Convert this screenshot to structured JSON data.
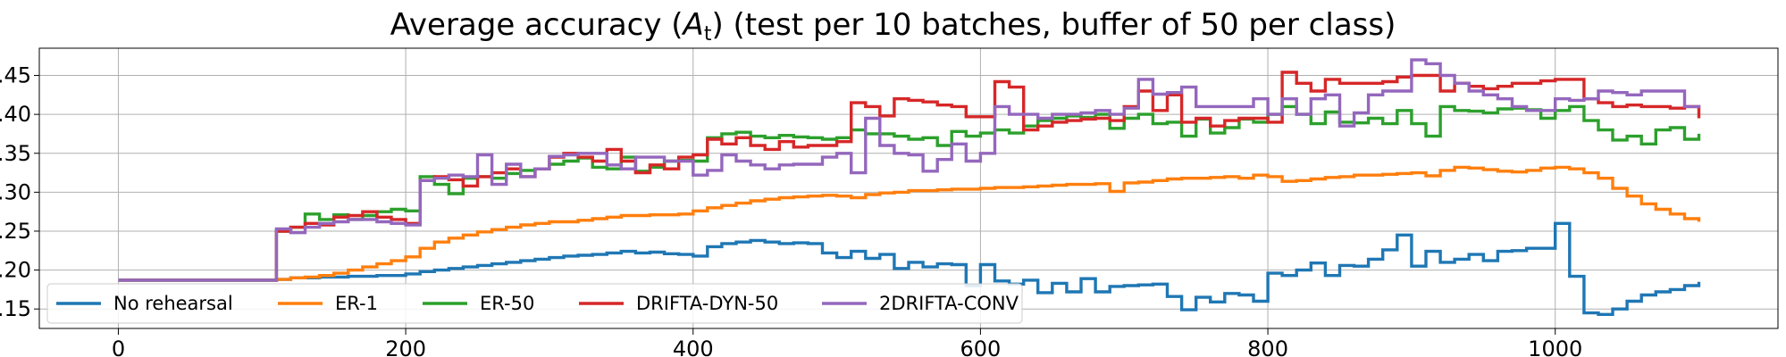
{
  "chart_data": {
    "type": "line",
    "title": {
      "pre": "Average accuracy (",
      "var": "A",
      "sub": "t",
      "post": ") (test per 10 batches, buffer of 50 per class)"
    },
    "xlabel": "",
    "ylabel": "",
    "xlim": [
      -55,
      1155
    ],
    "ylim": [
      0.125,
      0.485
    ],
    "x_ticks": [
      0,
      200,
      400,
      600,
      800,
      1000
    ],
    "x_tick_labels": [
      "0",
      "200",
      "400",
      "600",
      "800",
      "1000"
    ],
    "y_ticks": [
      0.15,
      0.2,
      0.25,
      0.3,
      0.35,
      0.4,
      0.45
    ],
    "y_tick_labels": [
      ".15",
      ".20",
      ".25",
      ".30",
      ".35",
      ".40",
      ".45"
    ],
    "grid": true,
    "legend_position": "lower-left",
    "series": [
      {
        "name": "No rehearsal",
        "color": "#1f77b4",
        "x": [
          0,
          100,
          110,
          120,
          130,
          140,
          150,
          160,
          170,
          180,
          190,
          200,
          210,
          220,
          230,
          240,
          250,
          260,
          270,
          280,
          290,
          300,
          310,
          320,
          330,
          340,
          350,
          360,
          370,
          380,
          390,
          400,
          410,
          420,
          430,
          440,
          450,
          460,
          470,
          480,
          490,
          500,
          510,
          520,
          530,
          540,
          550,
          560,
          570,
          580,
          590,
          600,
          610,
          620,
          630,
          640,
          650,
          660,
          670,
          680,
          690,
          700,
          710,
          720,
          730,
          740,
          750,
          760,
          770,
          780,
          790,
          800,
          810,
          820,
          830,
          840,
          850,
          860,
          870,
          880,
          890,
          900,
          910,
          920,
          930,
          940,
          950,
          960,
          970,
          980,
          990,
          1000,
          1010,
          1020,
          1030,
          1040,
          1050,
          1060,
          1070,
          1080,
          1090,
          1100
        ],
        "y": [
          0.187,
          0.187,
          0.188,
          0.19,
          0.19,
          0.191,
          0.191,
          0.192,
          0.192,
          0.193,
          0.193,
          0.195,
          0.198,
          0.2,
          0.202,
          0.204,
          0.206,
          0.208,
          0.21,
          0.212,
          0.214,
          0.216,
          0.218,
          0.219,
          0.22,
          0.222,
          0.224,
          0.222,
          0.223,
          0.221,
          0.22,
          0.218,
          0.23,
          0.234,
          0.236,
          0.238,
          0.236,
          0.234,
          0.235,
          0.234,
          0.222,
          0.216,
          0.224,
          0.215,
          0.22,
          0.202,
          0.21,
          0.204,
          0.208,
          0.207,
          0.18,
          0.207,
          0.186,
          0.182,
          0.187,
          0.171,
          0.183,
          0.172,
          0.189,
          0.172,
          0.179,
          0.18,
          0.181,
          0.182,
          0.166,
          0.149,
          0.165,
          0.159,
          0.17,
          0.168,
          0.16,
          0.196,
          0.193,
          0.2,
          0.209,
          0.193,
          0.206,
          0.205,
          0.214,
          0.226,
          0.245,
          0.205,
          0.224,
          0.21,
          0.214,
          0.22,
          0.212,
          0.224,
          0.225,
          0.228,
          0.228,
          0.26,
          0.192,
          0.145,
          0.143,
          0.15,
          0.16,
          0.168,
          0.172,
          0.175,
          0.18,
          0.185
        ]
      },
      {
        "name": "ER-1",
        "color": "#ff7f0e",
        "x": [
          0,
          100,
          110,
          120,
          130,
          140,
          150,
          160,
          170,
          180,
          190,
          200,
          210,
          220,
          230,
          240,
          250,
          260,
          270,
          280,
          290,
          300,
          310,
          320,
          330,
          340,
          350,
          360,
          370,
          380,
          390,
          400,
          410,
          420,
          430,
          440,
          450,
          460,
          470,
          480,
          490,
          500,
          510,
          520,
          530,
          540,
          550,
          560,
          570,
          580,
          590,
          600,
          610,
          620,
          630,
          640,
          650,
          660,
          670,
          680,
          690,
          700,
          710,
          720,
          730,
          740,
          750,
          760,
          770,
          780,
          790,
          800,
          810,
          820,
          830,
          840,
          850,
          860,
          870,
          880,
          890,
          900,
          910,
          920,
          930,
          940,
          950,
          960,
          970,
          980,
          990,
          1000,
          1010,
          1020,
          1030,
          1040,
          1050,
          1060,
          1070,
          1080,
          1090,
          1100
        ],
        "y": [
          0.187,
          0.187,
          0.188,
          0.19,
          0.191,
          0.193,
          0.196,
          0.2,
          0.204,
          0.208,
          0.212,
          0.217,
          0.228,
          0.236,
          0.241,
          0.245,
          0.249,
          0.252,
          0.255,
          0.258,
          0.26,
          0.262,
          0.262,
          0.264,
          0.266,
          0.268,
          0.27,
          0.27,
          0.271,
          0.271,
          0.272,
          0.276,
          0.28,
          0.283,
          0.286,
          0.289,
          0.291,
          0.293,
          0.294,
          0.295,
          0.296,
          0.295,
          0.293,
          0.297,
          0.299,
          0.3,
          0.302,
          0.302,
          0.303,
          0.304,
          0.304,
          0.305,
          0.306,
          0.306,
          0.307,
          0.308,
          0.309,
          0.31,
          0.31,
          0.311,
          0.301,
          0.312,
          0.313,
          0.315,
          0.317,
          0.318,
          0.318,
          0.319,
          0.32,
          0.318,
          0.322,
          0.32,
          0.314,
          0.315,
          0.317,
          0.319,
          0.32,
          0.322,
          0.322,
          0.323,
          0.324,
          0.325,
          0.321,
          0.328,
          0.332,
          0.331,
          0.329,
          0.327,
          0.326,
          0.328,
          0.331,
          0.332,
          0.33,
          0.325,
          0.318,
          0.305,
          0.295,
          0.285,
          0.278,
          0.272,
          0.266,
          0.262
        ]
      },
      {
        "name": "ER-50",
        "color": "#2ca02c",
        "x": [
          0,
          100,
          110,
          120,
          130,
          140,
          150,
          160,
          170,
          180,
          190,
          200,
          210,
          220,
          230,
          240,
          250,
          260,
          270,
          280,
          290,
          300,
          310,
          320,
          330,
          340,
          350,
          360,
          370,
          380,
          390,
          400,
          410,
          420,
          430,
          440,
          450,
          460,
          470,
          480,
          490,
          500,
          510,
          520,
          530,
          540,
          550,
          560,
          570,
          580,
          590,
          600,
          610,
          620,
          630,
          640,
          650,
          660,
          670,
          680,
          690,
          700,
          710,
          720,
          730,
          740,
          750,
          760,
          770,
          780,
          790,
          800,
          810,
          820,
          830,
          840,
          850,
          860,
          870,
          880,
          890,
          900,
          910,
          920,
          930,
          940,
          950,
          960,
          970,
          980,
          990,
          1000,
          1010,
          1020,
          1030,
          1040,
          1050,
          1060,
          1070,
          1080,
          1090,
          1100
        ],
        "y": [
          0.187,
          0.187,
          0.25,
          0.255,
          0.272,
          0.265,
          0.271,
          0.265,
          0.27,
          0.275,
          0.278,
          0.276,
          0.32,
          0.31,
          0.298,
          0.318,
          0.32,
          0.318,
          0.324,
          0.328,
          0.33,
          0.336,
          0.34,
          0.344,
          0.332,
          0.33,
          0.345,
          0.327,
          0.332,
          0.34,
          0.341,
          0.34,
          0.37,
          0.375,
          0.377,
          0.372,
          0.37,
          0.373,
          0.371,
          0.37,
          0.368,
          0.37,
          0.38,
          0.375,
          0.375,
          0.372,
          0.368,
          0.37,
          0.36,
          0.378,
          0.372,
          0.376,
          0.38,
          0.376,
          0.385,
          0.392,
          0.395,
          0.398,
          0.396,
          0.4,
          0.382,
          0.395,
          0.4,
          0.388,
          0.39,
          0.372,
          0.394,
          0.376,
          0.383,
          0.394,
          0.39,
          0.4,
          0.41,
          0.4,
          0.388,
          0.403,
          0.39,
          0.389,
          0.395,
          0.388,
          0.405,
          0.388,
          0.372,
          0.41,
          0.405,
          0.404,
          0.402,
          0.407,
          0.408,
          0.406,
          0.395,
          0.405,
          0.41,
          0.392,
          0.38,
          0.367,
          0.372,
          0.362,
          0.38,
          0.383,
          0.368,
          0.375
        ]
      },
      {
        "name": "DRIFTA-DYN-50",
        "color": "#d62728",
        "x": [
          0,
          100,
          110,
          120,
          130,
          140,
          150,
          160,
          170,
          180,
          190,
          200,
          210,
          220,
          230,
          240,
          250,
          260,
          270,
          280,
          290,
          300,
          310,
          320,
          330,
          340,
          350,
          360,
          370,
          380,
          390,
          400,
          410,
          420,
          430,
          440,
          450,
          460,
          470,
          480,
          490,
          500,
          510,
          520,
          530,
          540,
          550,
          560,
          570,
          580,
          590,
          600,
          610,
          620,
          630,
          640,
          650,
          660,
          670,
          680,
          690,
          700,
          710,
          720,
          730,
          740,
          750,
          760,
          770,
          780,
          790,
          800,
          810,
          820,
          830,
          840,
          850,
          860,
          870,
          880,
          890,
          900,
          910,
          920,
          930,
          940,
          950,
          960,
          970,
          980,
          990,
          1000,
          1010,
          1020,
          1030,
          1040,
          1050,
          1060,
          1070,
          1080,
          1090,
          1100
        ],
        "y": [
          0.187,
          0.187,
          0.25,
          0.255,
          0.26,
          0.258,
          0.268,
          0.27,
          0.275,
          0.268,
          0.265,
          0.26,
          0.315,
          0.32,
          0.316,
          0.308,
          0.32,
          0.325,
          0.33,
          0.32,
          0.33,
          0.345,
          0.35,
          0.345,
          0.34,
          0.355,
          0.34,
          0.325,
          0.335,
          0.33,
          0.345,
          0.348,
          0.368,
          0.362,
          0.37,
          0.36,
          0.355,
          0.365,
          0.358,
          0.36,
          0.36,
          0.365,
          0.415,
          0.41,
          0.398,
          0.42,
          0.418,
          0.416,
          0.412,
          0.41,
          0.397,
          0.397,
          0.442,
          0.435,
          0.38,
          0.385,
          0.39,
          0.392,
          0.394,
          0.395,
          0.392,
          0.41,
          0.43,
          0.405,
          0.425,
          0.39,
          0.395,
          0.385,
          0.392,
          0.395,
          0.395,
          0.39,
          0.454,
          0.44,
          0.43,
          0.445,
          0.44,
          0.44,
          0.44,
          0.442,
          0.448,
          0.45,
          0.45,
          0.43,
          0.44,
          0.436,
          0.433,
          0.436,
          0.44,
          0.44,
          0.443,
          0.445,
          0.445,
          0.42,
          0.415,
          0.41,
          0.412,
          0.41,
          0.41,
          0.408,
          0.41,
          0.395
        ]
      },
      {
        "name": "2DRIFTA-CONV",
        "color": "#9467bd",
        "x": [
          0,
          100,
          110,
          120,
          130,
          140,
          150,
          160,
          170,
          180,
          190,
          200,
          210,
          220,
          230,
          240,
          250,
          260,
          270,
          280,
          290,
          300,
          310,
          320,
          330,
          340,
          350,
          360,
          370,
          380,
          390,
          400,
          410,
          420,
          430,
          440,
          450,
          460,
          470,
          480,
          490,
          500,
          510,
          520,
          530,
          540,
          550,
          560,
          570,
          580,
          590,
          600,
          610,
          620,
          630,
          640,
          650,
          660,
          670,
          680,
          690,
          700,
          710,
          720,
          730,
          740,
          750,
          760,
          770,
          780,
          790,
          800,
          810,
          820,
          830,
          840,
          850,
          860,
          870,
          880,
          890,
          900,
          910,
          920,
          930,
          940,
          950,
          960,
          970,
          980,
          990,
          1000,
          1010,
          1020,
          1030,
          1040,
          1050,
          1060,
          1070,
          1080,
          1090,
          1100
        ],
        "y": [
          0.187,
          0.187,
          0.253,
          0.248,
          0.255,
          0.26,
          0.262,
          0.265,
          0.265,
          0.262,
          0.26,
          0.258,
          0.315,
          0.318,
          0.322,
          0.32,
          0.348,
          0.31,
          0.336,
          0.32,
          0.33,
          0.346,
          0.348,
          0.35,
          0.35,
          0.335,
          0.33,
          0.345,
          0.345,
          0.34,
          0.34,
          0.322,
          0.328,
          0.348,
          0.34,
          0.335,
          0.33,
          0.335,
          0.336,
          0.336,
          0.345,
          0.35,
          0.325,
          0.395,
          0.36,
          0.35,
          0.348,
          0.327,
          0.342,
          0.362,
          0.34,
          0.35,
          0.41,
          0.4,
          0.4,
          0.395,
          0.4,
          0.4,
          0.402,
          0.405,
          0.4,
          0.408,
          0.445,
          0.426,
          0.428,
          0.435,
          0.41,
          0.41,
          0.41,
          0.41,
          0.42,
          0.4,
          0.42,
          0.4,
          0.42,
          0.425,
          0.385,
          0.402,
          0.425,
          0.43,
          0.43,
          0.47,
          0.465,
          0.45,
          0.44,
          0.43,
          0.425,
          0.42,
          0.41,
          0.405,
          0.405,
          0.42,
          0.418,
          0.42,
          0.43,
          0.428,
          0.425,
          0.43,
          0.43,
          0.43,
          0.41,
          0.408
        ]
      }
    ]
  }
}
